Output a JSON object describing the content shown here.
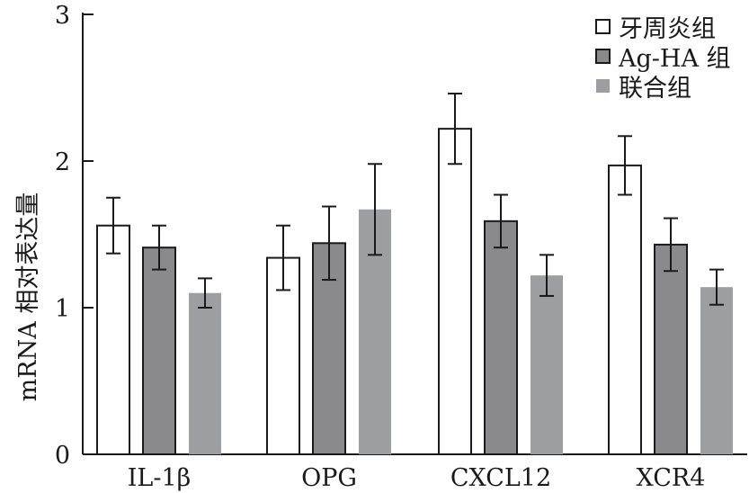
{
  "chart_data": {
    "type": "bar",
    "title": "",
    "xlabel": "",
    "ylabel": "mRNA 相对表达量",
    "ylim": [
      0,
      3
    ],
    "yticks": [
      0,
      1,
      2,
      3
    ],
    "categories": [
      "IL-1β",
      "OPG",
      "CXCL12",
      "XCR4"
    ],
    "legend_position": "top-right",
    "series": [
      {
        "name": "牙周炎组",
        "color": "#ffffff",
        "stroke": "#1a1a1a",
        "values": [
          1.56,
          1.34,
          2.22,
          1.97
        ],
        "errors": [
          0.19,
          0.22,
          0.24,
          0.2
        ]
      },
      {
        "name": "Ag-HA 组",
        "color": "#8a8a8c",
        "stroke": "#1a1a1a",
        "values": [
          1.41,
          1.44,
          1.59,
          1.43
        ],
        "errors": [
          0.15,
          0.25,
          0.18,
          0.18
        ]
      },
      {
        "name": "联合组",
        "color": "#9d9ea1",
        "stroke": "none",
        "values": [
          1.1,
          1.67,
          1.22,
          1.14
        ],
        "errors": [
          0.1,
          0.31,
          0.14,
          0.12
        ]
      }
    ]
  }
}
